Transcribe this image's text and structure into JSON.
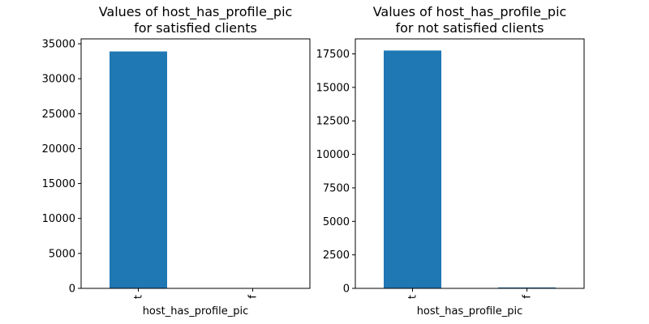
{
  "chart_data": [
    {
      "type": "bar",
      "title_lines": [
        "Values of host_has_profile_pic",
        "for satisfied clients"
      ],
      "xlabel": "host_has_profile_pic",
      "ylabel": "",
      "categories": [
        "t",
        "f"
      ],
      "values": [
        33900,
        0
      ],
      "ylim": [
        0,
        35700
      ],
      "yticks": [
        0,
        5000,
        10000,
        15000,
        20000,
        25000,
        30000,
        35000
      ],
      "ytick_labels": [
        "0",
        "5000",
        "10000",
        "15000",
        "20000",
        "25000",
        "30000",
        "35000"
      ],
      "bar_color": "#1f77b4",
      "grid": false,
      "legend": "none"
    },
    {
      "type": "bar",
      "title_lines": [
        "Values of host_has_profile_pic",
        "for not satisfied clients"
      ],
      "xlabel": "host_has_profile_pic",
      "ylabel": "",
      "categories": [
        "t",
        "f"
      ],
      "values": [
        17750,
        70
      ],
      "ylim": [
        0,
        18620
      ],
      "yticks": [
        0,
        2500,
        5000,
        7500,
        10000,
        12500,
        15000,
        17500
      ],
      "ytick_labels": [
        "0",
        "2500",
        "5000",
        "7500",
        "10000",
        "12500",
        "15000",
        "17500"
      ],
      "bar_color": "#1f77b4",
      "grid": false,
      "legend": "none"
    }
  ]
}
